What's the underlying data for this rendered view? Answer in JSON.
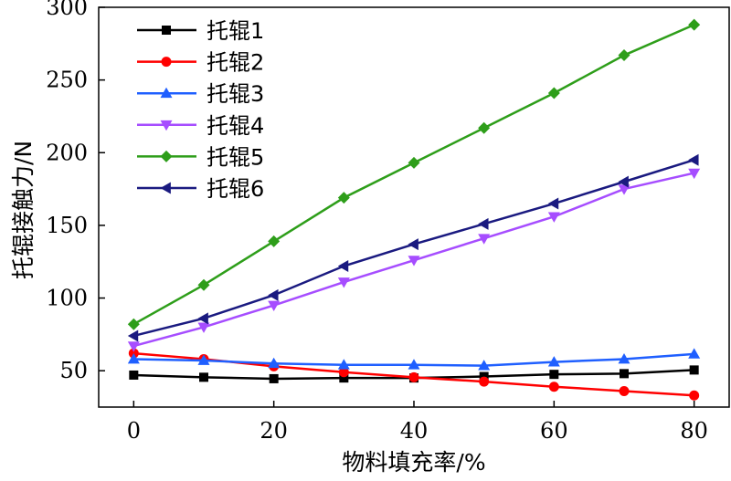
{
  "chart_data": {
    "type": "line",
    "xlabel": "物料填充率/%",
    "ylabel": "托辊接触力/N",
    "xlim": [
      -5,
      85
    ],
    "ylim": [
      25,
      300
    ],
    "xticks": [
      0,
      20,
      40,
      60,
      80
    ],
    "yticks": [
      50,
      100,
      150,
      200,
      250,
      300
    ],
    "x": [
      0,
      10,
      20,
      30,
      40,
      50,
      60,
      70,
      80
    ],
    "legend_position": "top-left",
    "grid": false,
    "series": [
      {
        "name": "托辊1",
        "color": "#000000",
        "marker": "square",
        "values": [
          47,
          45.5,
          44.5,
          45,
          45,
          46,
          47.5,
          48,
          50.5
        ]
      },
      {
        "name": "托辊2",
        "color": "#ff0000",
        "marker": "circle",
        "values": [
          62,
          58,
          53,
          49,
          45.5,
          42.5,
          39,
          36,
          33
        ]
      },
      {
        "name": "托辊3",
        "color": "#1f5fff",
        "marker": "triangle-up",
        "values": [
          58,
          57,
          55,
          54,
          54,
          53.5,
          56,
          58,
          61.5
        ]
      },
      {
        "name": "托辊4",
        "color": "#a64dff",
        "marker": "triangle-down",
        "values": [
          67,
          80,
          95,
          111,
          126,
          141,
          156,
          175,
          186
        ]
      },
      {
        "name": "托辊5",
        "color": "#2e9e1a",
        "marker": "diamond",
        "values": [
          82,
          109,
          139,
          169,
          193,
          217,
          241,
          267,
          288
        ]
      },
      {
        "name": "托辊6",
        "color": "#1a1a80",
        "marker": "triangle-left",
        "values": [
          74,
          86,
          102,
          122,
          137,
          151,
          165,
          180,
          195
        ]
      }
    ]
  }
}
